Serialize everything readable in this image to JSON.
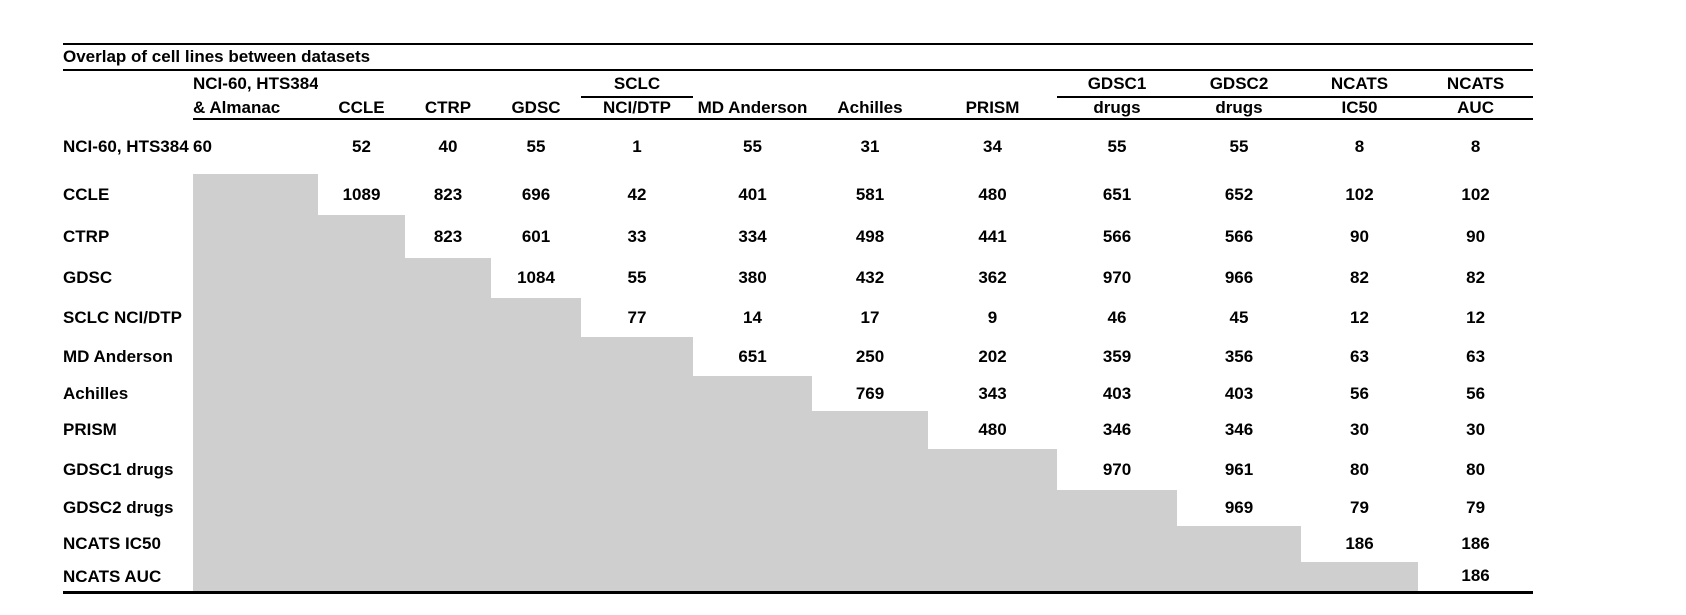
{
  "chart_data": {
    "type": "table",
    "title": "Overlap of cell lines between datasets",
    "column_headers": [
      [
        "NCI-60, HTS384",
        "& Almanac"
      ],
      [
        "",
        "CCLE"
      ],
      [
        "",
        "CTRP"
      ],
      [
        "",
        "GDSC"
      ],
      [
        "SCLC",
        "NCI/DTP"
      ],
      [
        "",
        "MD Anderson"
      ],
      [
        "",
        "Achilles"
      ],
      [
        "",
        "PRISM"
      ],
      [
        "GDSC1",
        "drugs"
      ],
      [
        "GDSC2",
        "drugs"
      ],
      [
        "NCATS",
        "IC50"
      ],
      [
        "NCATS",
        "AUC"
      ]
    ],
    "grouped_header_columns": [
      4,
      8,
      9,
      10,
      11
    ],
    "row_labels": [
      "NCI-60, HTS384\n& Almanac",
      "CCLE",
      "CTRP",
      "GDSC",
      "SCLC NCI/DTP",
      "MD Anderson",
      "Achilles",
      "PRISM",
      "GDSC1 drugs",
      "GDSC2 drugs",
      "NCATS IC50",
      "NCATS AUC"
    ],
    "matrix": [
      [
        60,
        52,
        40,
        55,
        1,
        55,
        31,
        34,
        55,
        55,
        8,
        8
      ],
      [
        null,
        1089,
        823,
        696,
        42,
        401,
        581,
        480,
        651,
        652,
        102,
        102
      ],
      [
        null,
        null,
        823,
        601,
        33,
        334,
        498,
        441,
        566,
        566,
        90,
        90
      ],
      [
        null,
        null,
        null,
        1084,
        55,
        380,
        432,
        362,
        970,
        966,
        82,
        82
      ],
      [
        null,
        null,
        null,
        null,
        77,
        14,
        17,
        9,
        46,
        45,
        12,
        12
      ],
      [
        null,
        null,
        null,
        null,
        null,
        651,
        250,
        202,
        359,
        356,
        63,
        63
      ],
      [
        null,
        null,
        null,
        null,
        null,
        null,
        769,
        343,
        403,
        403,
        56,
        56
      ],
      [
        null,
        null,
        null,
        null,
        null,
        null,
        null,
        480,
        346,
        346,
        30,
        30
      ],
      [
        null,
        null,
        null,
        null,
        null,
        null,
        null,
        null,
        970,
        961,
        80,
        80
      ],
      [
        null,
        null,
        null,
        null,
        null,
        null,
        null,
        null,
        null,
        969,
        79,
        79
      ],
      [
        null,
        null,
        null,
        null,
        null,
        null,
        null,
        null,
        null,
        null,
        186,
        186
      ],
      [
        null,
        null,
        null,
        null,
        null,
        null,
        null,
        null,
        null,
        null,
        null,
        186
      ]
    ],
    "colors": {
      "lower_triangle_shade": "#cfcfcf",
      "text": "#000000",
      "rules": "#000000"
    },
    "legend": "lower-left triangle shaded gray (no values); diagonal holds dataset self-counts"
  }
}
